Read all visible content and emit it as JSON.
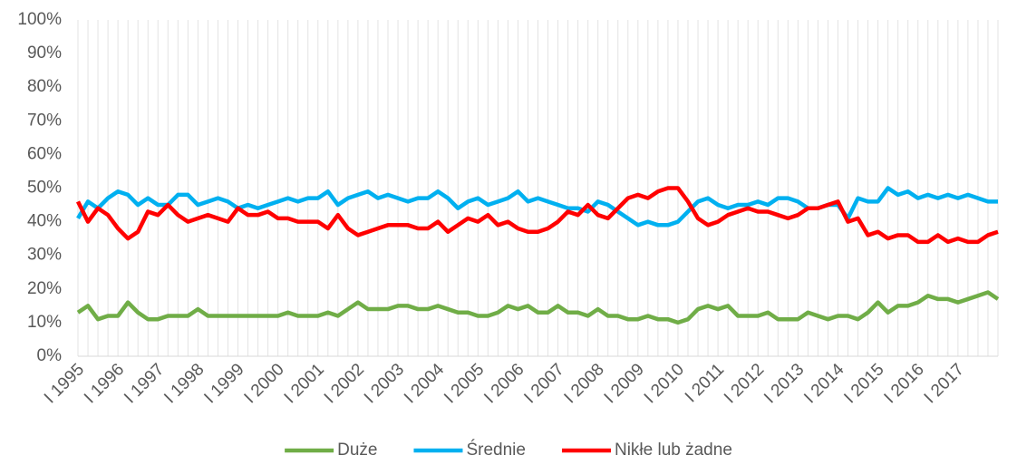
{
  "chart_data": {
    "type": "line",
    "categories": [
      "I 1995",
      null,
      null,
      null,
      "I 1996",
      null,
      null,
      null,
      "I 1997",
      null,
      null,
      null,
      "I 1998",
      null,
      null,
      null,
      "I 1999",
      null,
      null,
      null,
      "I 2000",
      null,
      null,
      null,
      "I 2001",
      null,
      null,
      null,
      "I 2002",
      null,
      null,
      null,
      "I 2003",
      null,
      null,
      null,
      "I 2004",
      null,
      null,
      null,
      "I 2005",
      null,
      null,
      null,
      "I 2006",
      null,
      null,
      null,
      "I 2007",
      null,
      null,
      null,
      "I 2008",
      null,
      null,
      null,
      "I 2009",
      null,
      null,
      null,
      "I 2010",
      null,
      null,
      null,
      "I 2011",
      null,
      null,
      null,
      "I 2012",
      null,
      null,
      null,
      "I 2013",
      null,
      null,
      null,
      "I 2014",
      null,
      null,
      null,
      "I 2015",
      null,
      null,
      null,
      "I 2016",
      null,
      null,
      null,
      "I 2017",
      null,
      null,
      null,
      null
    ],
    "series": [
      {
        "name": "Duże",
        "color": "#70ad47",
        "values": [
          13,
          15,
          11,
          12,
          12,
          16,
          13,
          11,
          11,
          12,
          12,
          12,
          14,
          12,
          12,
          12,
          12,
          12,
          12,
          12,
          12,
          13,
          12,
          12,
          12,
          13,
          12,
          14,
          16,
          14,
          14,
          14,
          15,
          15,
          14,
          14,
          15,
          14,
          13,
          13,
          12,
          12,
          13,
          15,
          14,
          15,
          13,
          13,
          15,
          13,
          13,
          12,
          14,
          12,
          12,
          11,
          11,
          12,
          11,
          11,
          10,
          11,
          14,
          15,
          14,
          15,
          12,
          12,
          12,
          13,
          11,
          11,
          11,
          13,
          12,
          11,
          12,
          12,
          11,
          13,
          16,
          13,
          15,
          15,
          16,
          18,
          17,
          17,
          16,
          17,
          18,
          19,
          17
        ]
      },
      {
        "name": "Średnie",
        "color": "#00b0f0",
        "values": [
          41,
          46,
          44,
          47,
          49,
          48,
          45,
          47,
          45,
          45,
          48,
          48,
          45,
          46,
          47,
          46,
          44,
          45,
          44,
          45,
          46,
          47,
          46,
          47,
          47,
          49,
          45,
          47,
          48,
          49,
          47,
          48,
          47,
          46,
          47,
          47,
          49,
          47,
          44,
          46,
          47,
          45,
          46,
          47,
          49,
          46,
          47,
          46,
          45,
          44,
          44,
          43,
          46,
          45,
          43,
          41,
          39,
          40,
          39,
          39,
          40,
          43,
          46,
          47,
          45,
          44,
          45,
          45,
          46,
          45,
          47,
          47,
          46,
          44,
          44,
          45,
          45,
          41,
          47,
          46,
          46,
          50,
          48,
          49,
          47,
          48,
          47,
          48,
          47,
          48,
          47,
          46,
          46
        ]
      },
      {
        "name": "Nikłe lub żadne",
        "color": "#ff0000",
        "values": [
          46,
          40,
          44,
          42,
          38,
          35,
          37,
          43,
          42,
          45,
          42,
          40,
          41,
          42,
          41,
          40,
          44,
          42,
          42,
          43,
          41,
          41,
          40,
          40,
          40,
          38,
          42,
          38,
          36,
          37,
          38,
          39,
          39,
          39,
          38,
          38,
          40,
          37,
          39,
          41,
          40,
          42,
          39,
          40,
          38,
          37,
          37,
          38,
          40,
          43,
          42,
          45,
          42,
          41,
          44,
          47,
          48,
          47,
          49,
          50,
          50,
          46,
          41,
          39,
          40,
          42,
          43,
          44,
          43,
          43,
          42,
          41,
          42,
          44,
          44,
          45,
          46,
          40,
          41,
          36,
          37,
          35,
          36,
          36,
          34,
          34,
          36,
          34,
          35,
          34,
          34,
          36,
          37
        ]
      }
    ],
    "ylim": [
      0,
      100
    ],
    "yticks": [
      {
        "value": 0,
        "label": "0%"
      },
      {
        "value": 10,
        "label": "10%"
      },
      {
        "value": 20,
        "label": "20%"
      },
      {
        "value": 30,
        "label": "30%"
      },
      {
        "value": 40,
        "label": "40%"
      },
      {
        "value": 50,
        "label": "50%"
      },
      {
        "value": 60,
        "label": "60%"
      },
      {
        "value": 70,
        "label": "70%"
      },
      {
        "value": 80,
        "label": "80%"
      },
      {
        "value": 90,
        "label": "90%"
      },
      {
        "value": 100,
        "label": "100%"
      }
    ],
    "grid": true,
    "legend": "bottom"
  }
}
